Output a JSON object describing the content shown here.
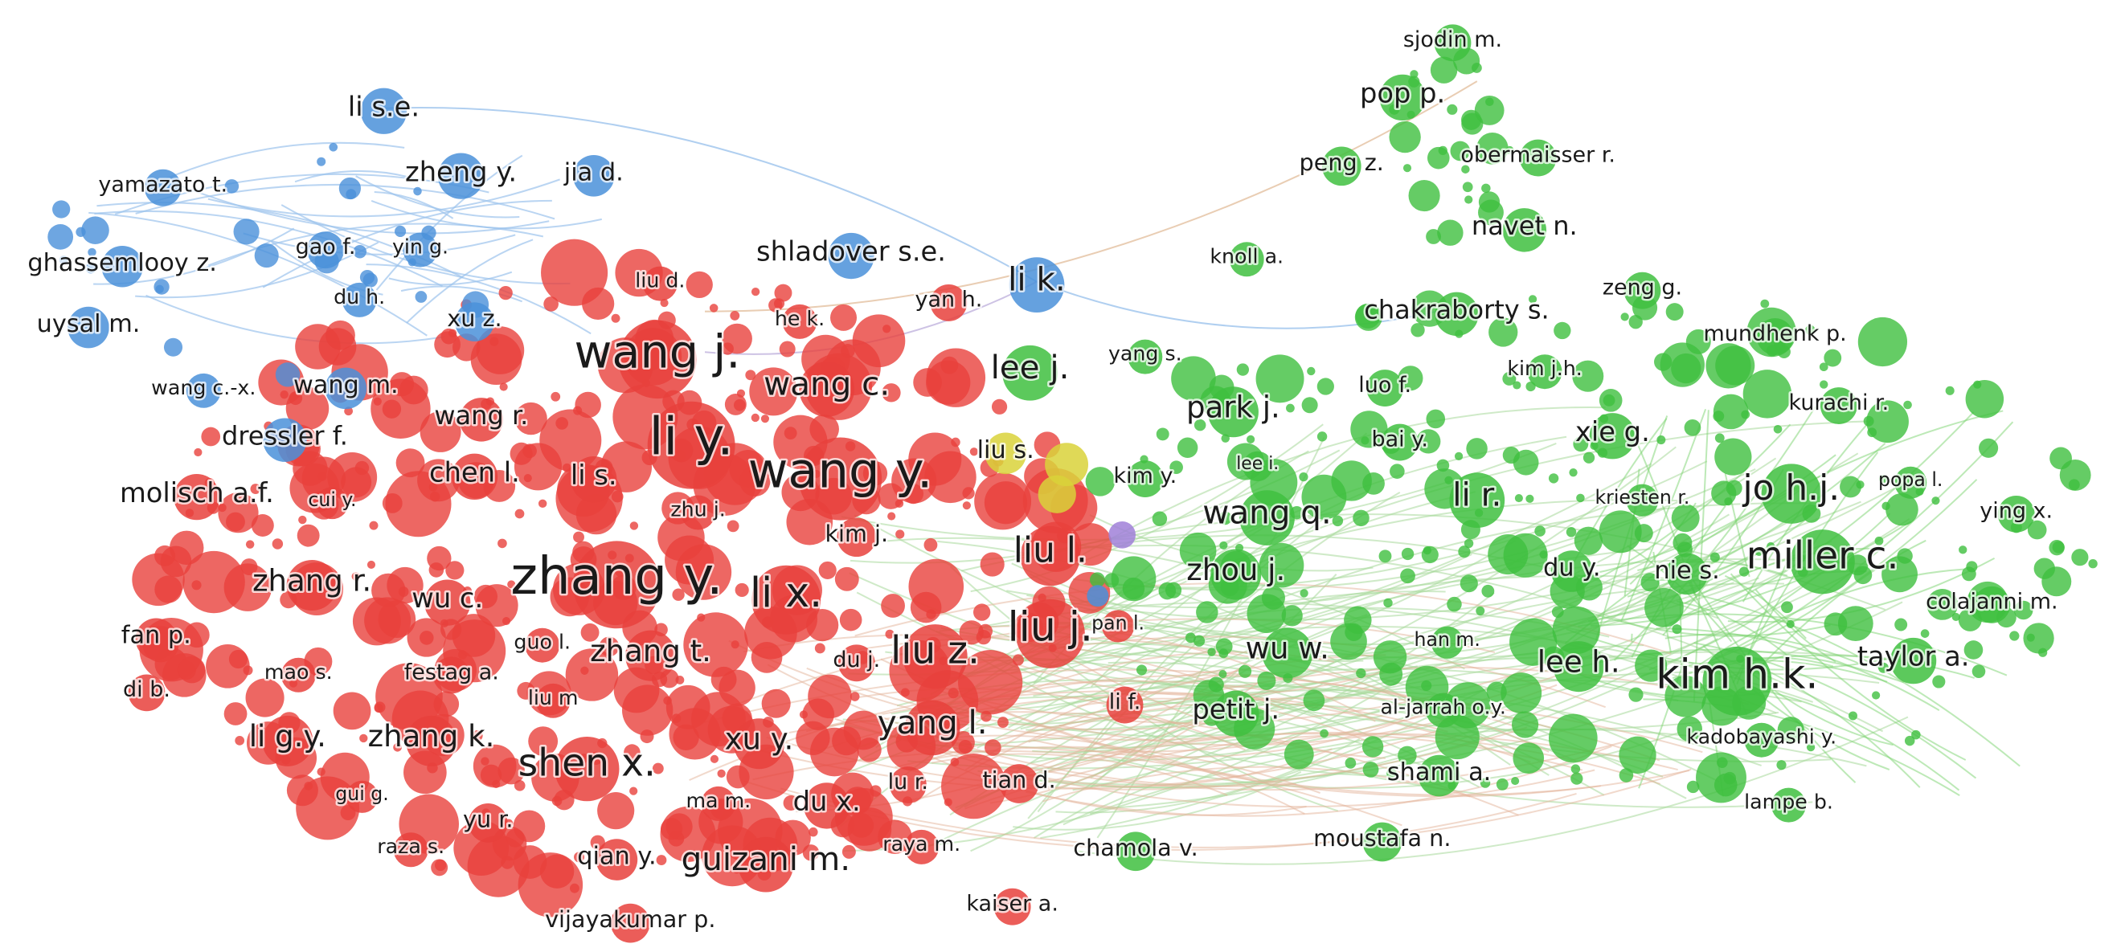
{
  "nodes": [
    {
      "label": "li s.e.",
      "color": "#4a90d9"
    },
    {
      "label": "zheng y.",
      "color": "#4a90d9"
    },
    {
      "label": "jia d.",
      "color": "#4a90d9"
    },
    {
      "label": "yamazato t.",
      "color": "#4a90d9"
    },
    {
      "label": "gao f.",
      "color": "#4a90d9"
    },
    {
      "label": "yin g.",
      "color": "#4a90d9"
    },
    {
      "label": "ghassemlooy z.",
      "color": "#4a90d9"
    },
    {
      "label": "uysal m.",
      "color": "#4a90d9"
    },
    {
      "label": "du h.",
      "color": "#4a90d9"
    },
    {
      "label": "xu z.",
      "color": "#4a90d9"
    },
    {
      "label": "shladover s.e.",
      "color": "#4a90d9"
    },
    {
      "label": "li k.",
      "color": "#4a90d9"
    },
    {
      "label": "wang c.-x.",
      "color": "#4a90d9"
    },
    {
      "label": "wang m.",
      "color": "#4a90d9"
    },
    {
      "label": "dressler f.",
      "color": "#4a90d9"
    },
    {
      "label": "liu d.",
      "color": "#e8413c"
    },
    {
      "label": "he k.",
      "color": "#e8413c"
    },
    {
      "label": "yan h.",
      "color": "#e8413c"
    },
    {
      "label": "wang j.",
      "color": "#e8413c"
    },
    {
      "label": "wang c.",
      "color": "#e8413c"
    },
    {
      "label": "wang r.",
      "color": "#e8413c"
    },
    {
      "label": "li y.",
      "color": "#e8413c"
    },
    {
      "label": "wang y.",
      "color": "#e8413c"
    },
    {
      "label": "chen l.",
      "color": "#e8413c"
    },
    {
      "label": "li s.",
      "color": "#e8413c"
    },
    {
      "label": "molisch a.f.",
      "color": "#e8413c"
    },
    {
      "label": "cui y.",
      "color": "#e8413c"
    },
    {
      "label": "zhu j.",
      "color": "#e8413c"
    },
    {
      "label": "kim j.",
      "color": "#e8413c"
    },
    {
      "label": "zhang y.",
      "color": "#e8413c"
    },
    {
      "label": "li x.",
      "color": "#e8413c"
    },
    {
      "label": "liu l.",
      "color": "#e8413c"
    },
    {
      "label": "zhang r.",
      "color": "#e8413c"
    },
    {
      "label": "wu c.",
      "color": "#e8413c"
    },
    {
      "label": "liu j.",
      "color": "#e8413c"
    },
    {
      "label": "fan p.",
      "color": "#e8413c"
    },
    {
      "label": "guo l.",
      "color": "#e8413c"
    },
    {
      "label": "zhang t.",
      "color": "#e8413c"
    },
    {
      "label": "liu z.",
      "color": "#e8413c"
    },
    {
      "label": "du j.",
      "color": "#e8413c"
    },
    {
      "label": "mao s.",
      "color": "#e8413c"
    },
    {
      "label": "festag a.",
      "color": "#e8413c"
    },
    {
      "label": "di b.",
      "color": "#e8413c"
    },
    {
      "label": "liu m",
      "color": "#e8413c"
    },
    {
      "label": "li g.y.",
      "color": "#e8413c"
    },
    {
      "label": "zhang k.",
      "color": "#e8413c"
    },
    {
      "label": "xu y.",
      "color": "#e8413c"
    },
    {
      "label": "yang l.",
      "color": "#e8413c"
    },
    {
      "label": "shen x.",
      "color": "#e8413c"
    },
    {
      "label": "lu r.",
      "color": "#e8413c"
    },
    {
      "label": "tian d.",
      "color": "#e8413c"
    },
    {
      "label": "gui g.",
      "color": "#e8413c"
    },
    {
      "label": "ma m.",
      "color": "#e8413c"
    },
    {
      "label": "du x.",
      "color": "#e8413c"
    },
    {
      "label": "yu r.",
      "color": "#e8413c"
    },
    {
      "label": "raza s.",
      "color": "#e8413c"
    },
    {
      "label": "raya m.",
      "color": "#e8413c"
    },
    {
      "label": "qian y.",
      "color": "#e8413c"
    },
    {
      "label": "guizani m.",
      "color": "#e8413c"
    },
    {
      "label": "kaiser a.",
      "color": "#e8413c"
    },
    {
      "label": "vijayakumar p.",
      "color": "#e8413c"
    },
    {
      "label": "pan l.",
      "color": "#e8413c"
    },
    {
      "label": "li f.",
      "color": "#e8413c"
    },
    {
      "label": "liu s.",
      "color": "#d9d23a"
    },
    {
      "label": "sjodin m.",
      "color": "#3fbf3f"
    },
    {
      "label": "pop p.",
      "color": "#3fbf3f"
    },
    {
      "label": "peng z.",
      "color": "#3fbf3f"
    },
    {
      "label": "obermaisser r.",
      "color": "#3fbf3f"
    },
    {
      "label": "navet n.",
      "color": "#3fbf3f"
    },
    {
      "label": "knoll a.",
      "color": "#3fbf3f"
    },
    {
      "label": "zeng g.",
      "color": "#3fbf3f"
    },
    {
      "label": "chakraborty s.",
      "color": "#3fbf3f"
    },
    {
      "label": "mundhenk p.",
      "color": "#3fbf3f"
    },
    {
      "label": "yang s.",
      "color": "#3fbf3f"
    },
    {
      "label": "lee j.",
      "color": "#3fbf3f"
    },
    {
      "label": "luo f.",
      "color": "#3fbf3f"
    },
    {
      "label": "kim j.h.",
      "color": "#3fbf3f"
    },
    {
      "label": "park j.",
      "color": "#3fbf3f"
    },
    {
      "label": "kurachi r.",
      "color": "#3fbf3f"
    },
    {
      "label": "bai y.",
      "color": "#3fbf3f"
    },
    {
      "label": "xie g.",
      "color": "#3fbf3f"
    },
    {
      "label": "kim y.",
      "color": "#3fbf3f"
    },
    {
      "label": "lee i.",
      "color": "#3fbf3f"
    },
    {
      "label": "li r.",
      "color": "#3fbf3f"
    },
    {
      "label": "kriesten r.",
      "color": "#3fbf3f"
    },
    {
      "label": "jo h.j.",
      "color": "#3fbf3f"
    },
    {
      "label": "popa l.",
      "color": "#3fbf3f"
    },
    {
      "label": "ying x.",
      "color": "#3fbf3f"
    },
    {
      "label": "wang q.",
      "color": "#3fbf3f"
    },
    {
      "label": "miller c.",
      "color": "#3fbf3f"
    },
    {
      "label": "zhou j.",
      "color": "#3fbf3f"
    },
    {
      "label": "du y.",
      "color": "#3fbf3f"
    },
    {
      "label": "nie s.",
      "color": "#3fbf3f"
    },
    {
      "label": "colajanni m.",
      "color": "#3fbf3f"
    },
    {
      "label": "han m.",
      "color": "#3fbf3f"
    },
    {
      "label": "wu w.",
      "color": "#3fbf3f"
    },
    {
      "label": "lee h.",
      "color": "#3fbf3f"
    },
    {
      "label": "kim h.k.",
      "color": "#3fbf3f"
    },
    {
      "label": "taylor a.",
      "color": "#3fbf3f"
    },
    {
      "label": "petit j.",
      "color": "#3fbf3f"
    },
    {
      "label": "al-jarrah o.y.",
      "color": "#3fbf3f"
    },
    {
      "label": "kadobayashi y.",
      "color": "#3fbf3f"
    },
    {
      "label": "shami a.",
      "color": "#3fbf3f"
    },
    {
      "label": "chamola v.",
      "color": "#3fbf3f"
    },
    {
      "label": "moustafa n.",
      "color": "#3fbf3f"
    },
    {
      "label": "lampe b.",
      "color": "#3fbf3f"
    }
  ]
}
